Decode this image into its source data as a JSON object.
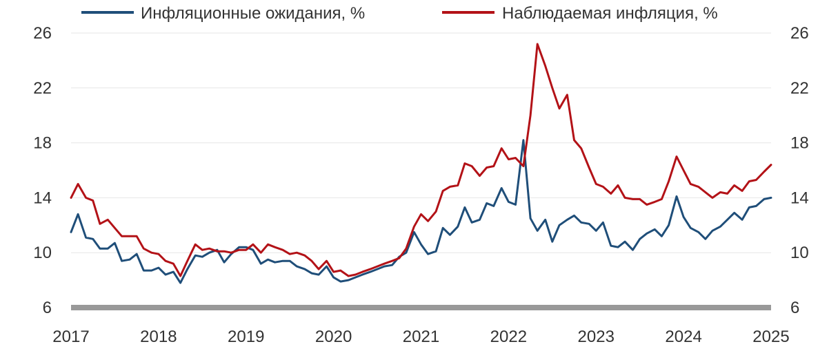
{
  "chart_data": {
    "type": "line",
    "title": "",
    "xlabel": "",
    "ylabel": "",
    "xlim": [
      2017,
      2025
    ],
    "ylim": [
      6,
      26
    ],
    "y_ticks": [
      "6",
      "10",
      "14",
      "18",
      "22",
      "26"
    ],
    "x_ticks": [
      "2017",
      "2018",
      "2019",
      "2020",
      "2021",
      "2022",
      "2023",
      "2024",
      "2025"
    ],
    "grid": true,
    "legend_position": "top",
    "series": [
      {
        "name": "Инфляционные ожидания, %",
        "color": "#1f4e79",
        "x": [
          2017.0,
          2017.08,
          2017.17,
          2017.25,
          2017.33,
          2017.42,
          2017.5,
          2017.58,
          2017.67,
          2017.75,
          2017.83,
          2017.92,
          2018.0,
          2018.08,
          2018.17,
          2018.25,
          2018.33,
          2018.42,
          2018.5,
          2018.58,
          2018.67,
          2018.75,
          2018.83,
          2018.92,
          2019.0,
          2019.08,
          2019.17,
          2019.25,
          2019.33,
          2019.42,
          2019.5,
          2019.58,
          2019.67,
          2019.75,
          2019.83,
          2019.92,
          2020.0,
          2020.08,
          2020.17,
          2020.25,
          2020.33,
          2020.42,
          2020.5,
          2020.58,
          2020.67,
          2020.75,
          2020.83,
          2020.92,
          2021.0,
          2021.08,
          2021.17,
          2021.25,
          2021.33,
          2021.42,
          2021.5,
          2021.58,
          2021.67,
          2021.75,
          2021.83,
          2021.92,
          2022.0,
          2022.08,
          2022.17,
          2022.25,
          2022.33,
          2022.42,
          2022.5,
          2022.58,
          2022.67,
          2022.75,
          2022.83,
          2022.92,
          2023.0,
          2023.08,
          2023.17,
          2023.25,
          2023.33,
          2023.42,
          2023.5,
          2023.58,
          2023.67,
          2023.75,
          2023.83,
          2023.92,
          2024.0,
          2024.08,
          2024.17,
          2024.25,
          2024.33,
          2024.42,
          2024.5,
          2024.58,
          2024.67,
          2024.75,
          2024.83,
          2024.92,
          2025.0
        ],
        "values": [
          11.5,
          12.8,
          11.1,
          11.0,
          10.3,
          10.3,
          10.7,
          9.4,
          9.5,
          9.9,
          8.7,
          8.7,
          8.9,
          8.4,
          8.6,
          7.8,
          8.8,
          9.8,
          9.7,
          10.0,
          10.2,
          9.3,
          9.9,
          10.4,
          10.4,
          10.2,
          9.2,
          9.5,
          9.3,
          9.4,
          9.4,
          9.0,
          8.8,
          8.5,
          8.4,
          9.0,
          8.2,
          7.9,
          8.0,
          8.2,
          8.4,
          8.6,
          8.8,
          9.0,
          9.1,
          9.7,
          10.0,
          11.5,
          10.6,
          9.9,
          10.1,
          11.8,
          11.3,
          11.9,
          13.3,
          12.2,
          12.4,
          13.6,
          13.4,
          14.7,
          13.7,
          13.5,
          18.2,
          12.5,
          11.6,
          12.4,
          10.8,
          12.0,
          12.4,
          12.7,
          12.2,
          12.1,
          11.6,
          12.2,
          10.5,
          10.4,
          10.8,
          10.2,
          11.0,
          11.4,
          11.7,
          11.2,
          12.0,
          14.1,
          12.6,
          11.8,
          11.5,
          11.0,
          11.6,
          11.9,
          12.4,
          12.9,
          12.4,
          13.3,
          13.4,
          13.9,
          14.0
        ]
      },
      {
        "name": "Наблюдаемая инфляция, %",
        "color": "#b31217",
        "x": [
          2017.0,
          2017.08,
          2017.17,
          2017.25,
          2017.33,
          2017.42,
          2017.5,
          2017.58,
          2017.67,
          2017.75,
          2017.83,
          2017.92,
          2018.0,
          2018.08,
          2018.17,
          2018.25,
          2018.33,
          2018.42,
          2018.5,
          2018.58,
          2018.67,
          2018.75,
          2018.83,
          2018.92,
          2019.0,
          2019.08,
          2019.17,
          2019.25,
          2019.33,
          2019.42,
          2019.5,
          2019.58,
          2019.67,
          2019.75,
          2019.83,
          2019.92,
          2020.0,
          2020.08,
          2020.17,
          2020.25,
          2020.33,
          2020.42,
          2020.5,
          2020.58,
          2020.67,
          2020.75,
          2020.83,
          2020.92,
          2021.0,
          2021.08,
          2021.17,
          2021.25,
          2021.33,
          2021.42,
          2021.5,
          2021.58,
          2021.67,
          2021.75,
          2021.83,
          2021.92,
          2022.0,
          2022.08,
          2022.17,
          2022.25,
          2022.33,
          2022.42,
          2022.5,
          2022.58,
          2022.67,
          2022.75,
          2022.83,
          2022.92,
          2023.0,
          2023.08,
          2023.17,
          2023.25,
          2023.33,
          2023.42,
          2023.5,
          2023.58,
          2023.67,
          2023.75,
          2023.83,
          2023.92,
          2024.0,
          2024.08,
          2024.17,
          2024.25,
          2024.33,
          2024.42,
          2024.5,
          2024.58,
          2024.67,
          2024.75,
          2024.83,
          2024.92,
          2025.0
        ],
        "values": [
          14.0,
          15.0,
          14.0,
          13.8,
          12.1,
          12.4,
          11.8,
          11.2,
          11.2,
          11.2,
          10.3,
          10.0,
          9.9,
          9.4,
          9.2,
          8.3,
          9.4,
          10.6,
          10.2,
          10.3,
          10.1,
          10.1,
          10.0,
          10.2,
          10.2,
          10.6,
          10.0,
          10.6,
          10.4,
          10.2,
          9.9,
          10.0,
          9.8,
          9.4,
          8.8,
          9.4,
          8.6,
          8.7,
          8.3,
          8.4,
          8.6,
          8.8,
          9.0,
          9.2,
          9.4,
          9.6,
          10.3,
          11.9,
          12.8,
          12.3,
          13.0,
          14.5,
          14.8,
          14.9,
          16.5,
          16.3,
          15.6,
          16.2,
          16.3,
          17.6,
          16.8,
          16.9,
          16.3,
          20.0,
          25.2,
          23.6,
          22.0,
          20.5,
          21.5,
          18.2,
          17.6,
          16.2,
          15.0,
          14.8,
          14.3,
          14.9,
          14.0,
          13.9,
          13.9,
          13.5,
          13.7,
          13.9,
          15.2,
          17.0,
          16.0,
          15.0,
          14.8,
          14.4,
          14.0,
          14.4,
          14.3,
          14.9,
          14.5,
          15.2,
          15.3,
          15.9,
          16.4
        ]
      }
    ]
  }
}
